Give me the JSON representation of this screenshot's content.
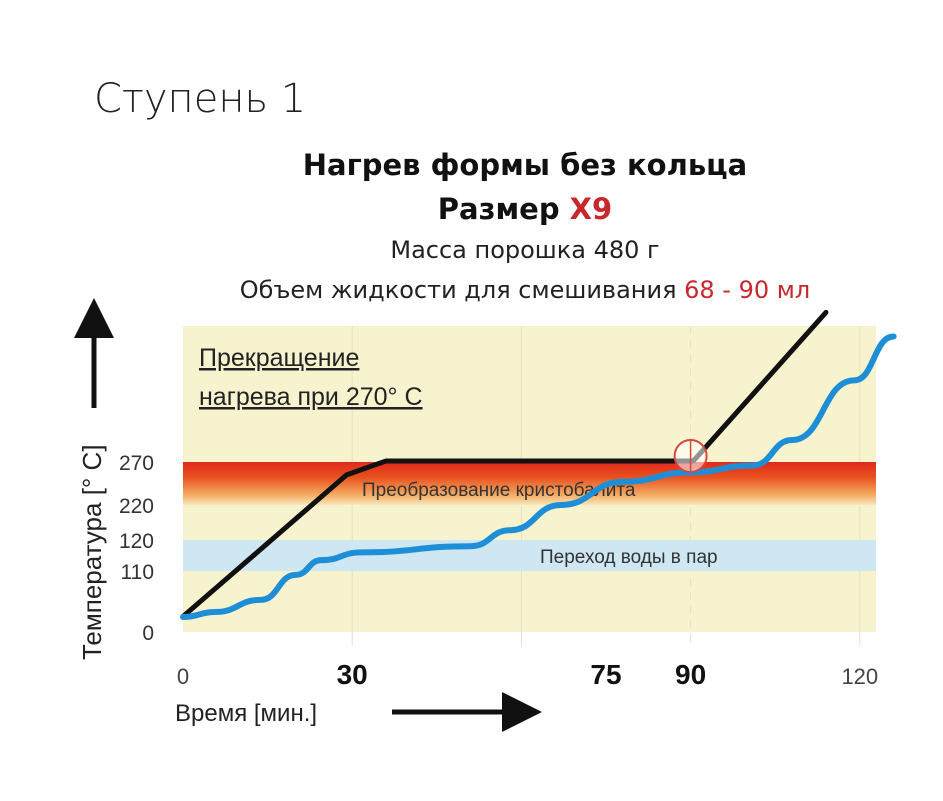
{
  "header": {
    "step": "Ступень 1",
    "title": "Нагрев формы без кольца",
    "size_label": "Размер ",
    "size_value": "X9",
    "powder": "Масса порошка 480 г",
    "liquid_label": "Объем жидкости для смешивания ",
    "liquid_value": "68 - 90 мл"
  },
  "colors": {
    "accent": "#c8282d",
    "blue": "#1e8fd6",
    "black": "#111111",
    "bg": "#f8f3cf",
    "waterband": "#cfe6f3"
  },
  "chart_data": {
    "type": "line",
    "xlabel": "Время [мин.]",
    "ylabel": "Температура [° С]",
    "x_ticks": [
      {
        "v": 0,
        "label": "0",
        "bold": false
      },
      {
        "v": 30,
        "label": "30",
        "bold": true
      },
      {
        "v": 75,
        "label": "75",
        "bold": true
      },
      {
        "v": 90,
        "label": "90",
        "bold": true
      },
      {
        "v": 120,
        "label": "120",
        "bold": false
      }
    ],
    "y_ticks": [
      {
        "v": 0,
        "label": "0"
      },
      {
        "v": 110,
        "label": "110"
      },
      {
        "v": 120,
        "label": "120"
      },
      {
        "v": 220,
        "label": "220"
      },
      {
        "v": 270,
        "label": "270"
      }
    ],
    "xlim": [
      0,
      125
    ],
    "ylim": [
      0,
      400
    ],
    "bands": [
      {
        "name": "cristobalite",
        "from": 220,
        "to": 270,
        "label": "Преобразование кристобалита"
      },
      {
        "name": "water",
        "from": 110,
        "to": 120,
        "label": "Переход воды в пар"
      }
    ],
    "annotation": {
      "line1": "Прекращение ",
      "line2": "нагрева при 270° С",
      "x": 90,
      "y": 270
    },
    "series": [
      {
        "name": "furnace",
        "color": "#111111",
        "points": [
          [
            0,
            28
          ],
          [
            29,
            255
          ],
          [
            36,
            271
          ],
          [
            90.5,
            271
          ],
          [
            114,
            413
          ]
        ]
      },
      {
        "name": "mold",
        "color": "#1e8fd6",
        "points": [
          [
            0,
            27
          ],
          [
            5.7,
            36
          ],
          [
            13.8,
            58
          ],
          [
            20,
            103
          ],
          [
            24.5,
            113.5
          ],
          [
            31.6,
            116
          ],
          [
            51,
            118
          ],
          [
            58,
            148
          ],
          [
            67,
            220
          ],
          [
            78,
            247
          ],
          [
            90,
            258
          ],
          [
            101,
            266
          ],
          [
            108,
            291
          ],
          [
            119,
            348
          ],
          [
            126,
            390
          ]
        ]
      }
    ]
  }
}
